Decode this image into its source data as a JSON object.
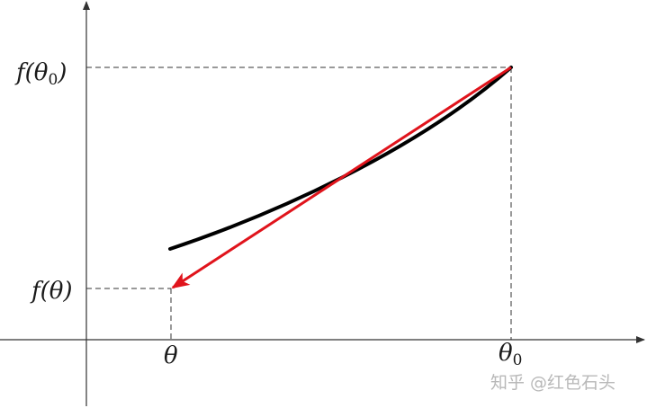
{
  "labels": {
    "f_theta0": {
      "func": "f(",
      "var": "θ",
      "sub": "0",
      "close": ")"
    },
    "f_theta": "f(θ)",
    "theta": "θ",
    "theta0": {
      "var": "θ",
      "sub": "0"
    }
  },
  "watermark": "知乎 @红色石头",
  "colors": {
    "axis": "#333333",
    "curve": "#000000",
    "arrow": "#e0141c",
    "dashed": "#333333",
    "watermark": "#b8b8b8"
  }
}
